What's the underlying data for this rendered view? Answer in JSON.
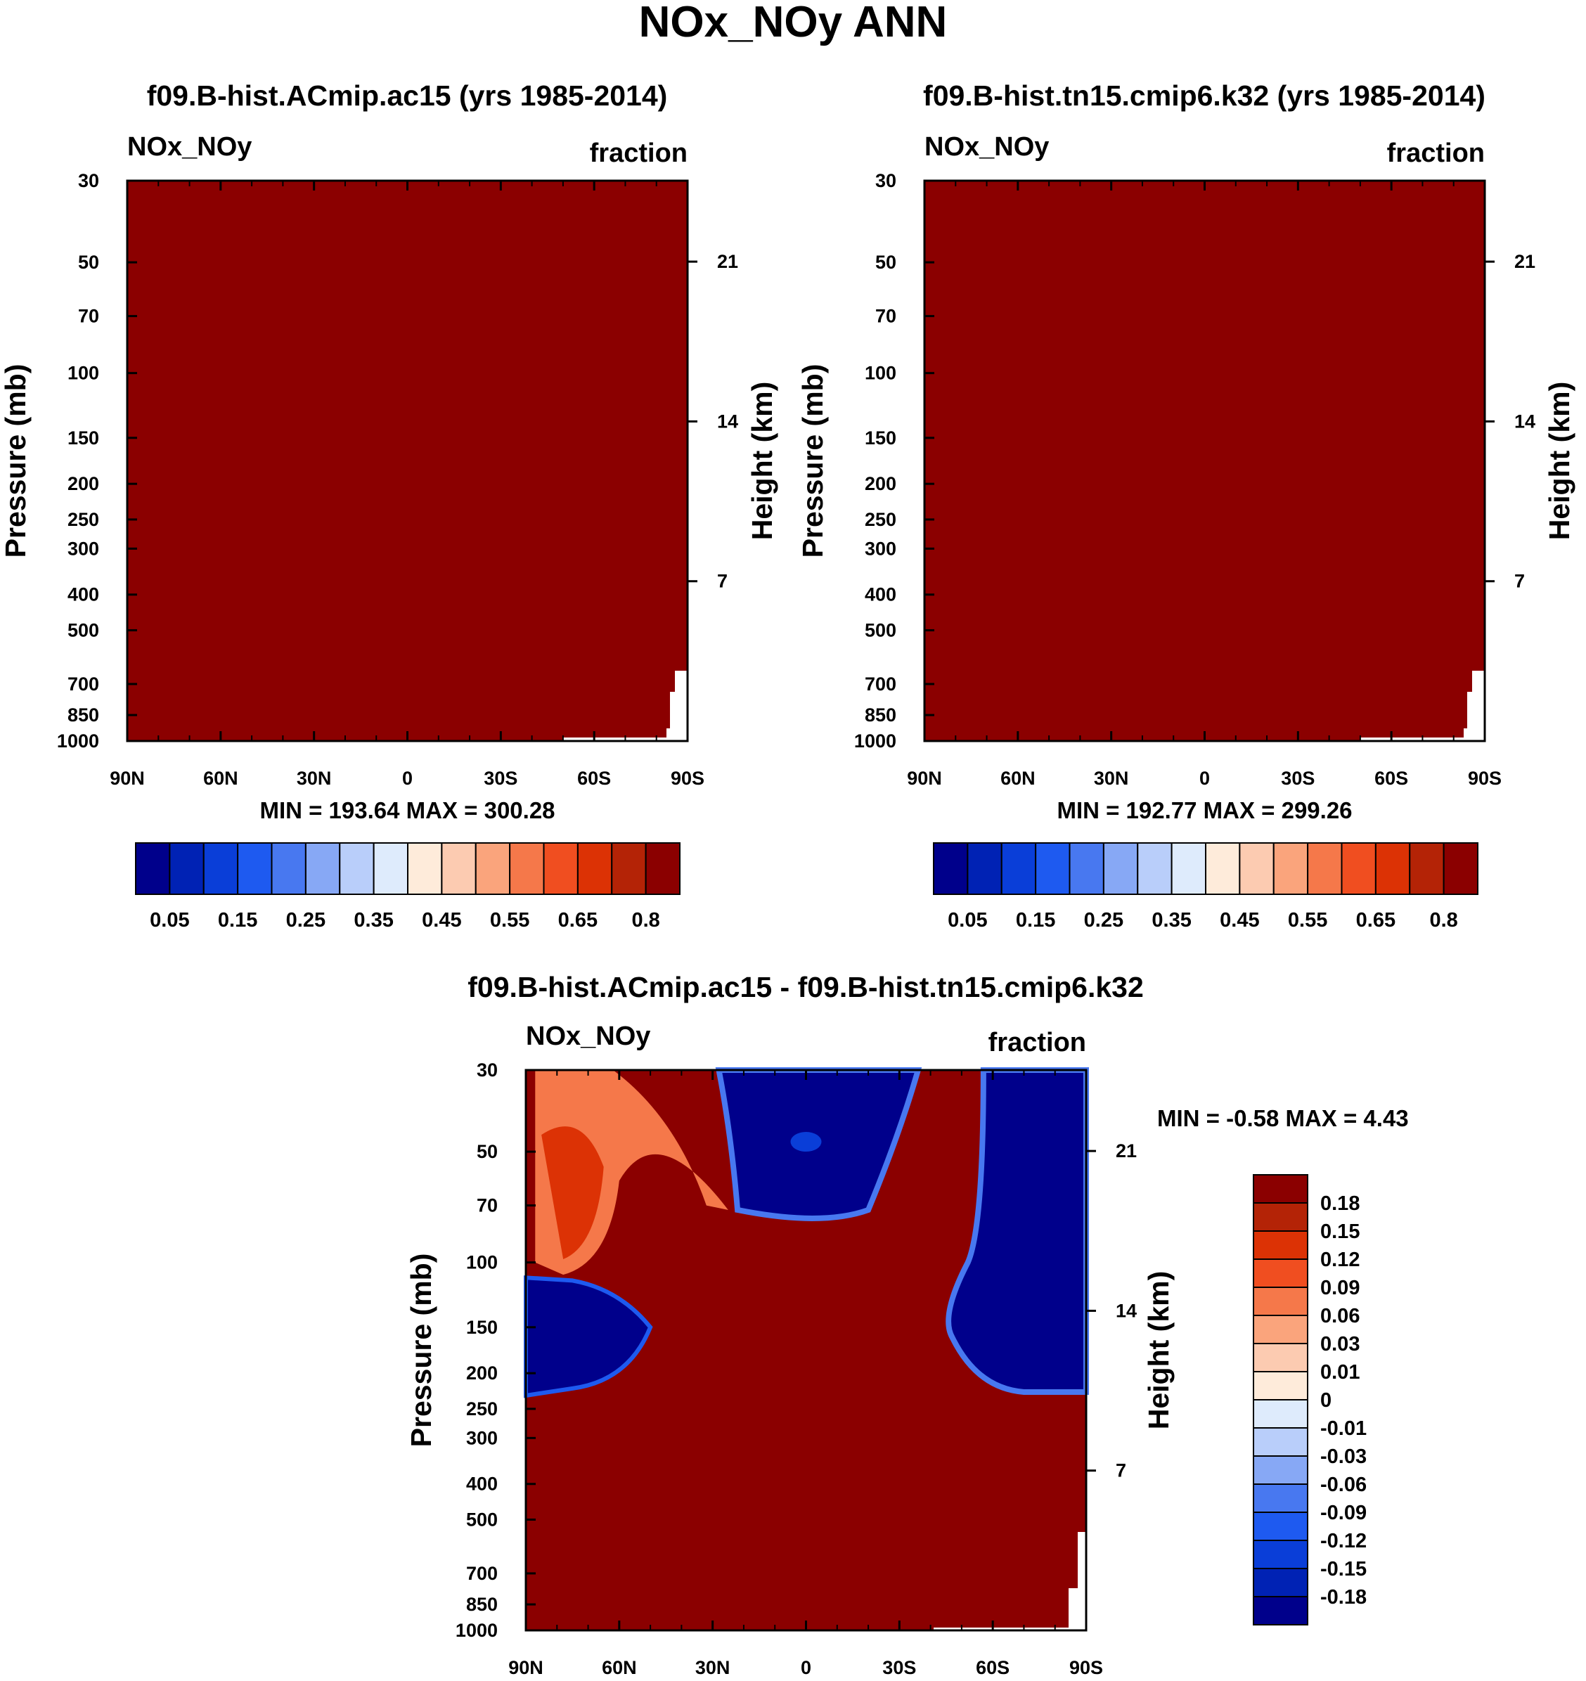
{
  "figure_title": "NOx_NOy ANN",
  "chart_data": [
    {
      "type": "heatmap",
      "title": "f09.B-hist.ACmip.ac15 (yrs 1985-2014)",
      "variable": "NOx_NOy",
      "units": "fraction",
      "ylabel": "Pressure (mb)",
      "ylabel_right": "Height (km)",
      "x_ticks": [
        "90N",
        "60N",
        "30N",
        "0",
        "30S",
        "60S",
        "90S"
      ],
      "y_ticks": [
        "30",
        "50",
        "70",
        "100",
        "150",
        "200",
        "250",
        "300",
        "400",
        "500",
        "700",
        "850",
        "1000"
      ],
      "height_ticks": [
        "21",
        "14",
        "7"
      ],
      "stats": "MIN = 193.64  MAX = 300.28",
      "field_color": "#8B0000",
      "colorbar": {
        "colors": [
          "#00008B",
          "#0022B4",
          "#0A3ED8",
          "#1E5AF0",
          "#4878F0",
          "#87A8F5",
          "#B9CEFA",
          "#DEEBFC",
          "#FEEBDA",
          "#FCCBB1",
          "#FAA47C",
          "#F5784A",
          "#F04E20",
          "#DC3205",
          "#B42306",
          "#8B0000"
        ],
        "labels": [
          "0.05",
          "0.15",
          "0.25",
          "0.35",
          "0.45",
          "0.55",
          "0.65",
          "0.8"
        ]
      }
    },
    {
      "type": "heatmap",
      "title": "f09.B-hist.tn15.cmip6.k32 (yrs 1985-2014)",
      "variable": "NOx_NOy",
      "units": "fraction",
      "ylabel": "Pressure (mb)",
      "ylabel_right": "Height (km)",
      "x_ticks": [
        "90N",
        "60N",
        "30N",
        "0",
        "30S",
        "60S",
        "90S"
      ],
      "y_ticks": [
        "30",
        "50",
        "70",
        "100",
        "150",
        "200",
        "250",
        "300",
        "400",
        "500",
        "700",
        "850",
        "1000"
      ],
      "height_ticks": [
        "21",
        "14",
        "7"
      ],
      "stats": "MIN = 192.77  MAX = 299.26",
      "field_color": "#8B0000",
      "colorbar": {
        "colors": [
          "#00008B",
          "#0022B4",
          "#0A3ED8",
          "#1E5AF0",
          "#4878F0",
          "#87A8F5",
          "#B9CEFA",
          "#DEEBFC",
          "#FEEBDA",
          "#FCCBB1",
          "#FAA47C",
          "#F5784A",
          "#F04E20",
          "#DC3205",
          "#B42306",
          "#8B0000"
        ],
        "labels": [
          "0.05",
          "0.15",
          "0.25",
          "0.35",
          "0.45",
          "0.55",
          "0.65",
          "0.8"
        ]
      }
    },
    {
      "type": "heatmap",
      "title": "f09.B-hist.ACmip.ac15 - f09.B-hist.tn15.cmip6.k32",
      "variable": "NOx_NOy",
      "units": "fraction",
      "ylabel": "Pressure (mb)",
      "ylabel_right": "Height (km)",
      "x_ticks": [
        "90N",
        "60N",
        "30N",
        "0",
        "30S",
        "60S",
        "90S"
      ],
      "y_ticks": [
        "30",
        "50",
        "70",
        "100",
        "150",
        "200",
        "250",
        "300",
        "400",
        "500",
        "700",
        "850",
        "1000"
      ],
      "height_ticks": [
        "21",
        "14",
        "7"
      ],
      "stats": "MIN =  -0.58  MAX =   4.43",
      "field_color": "#8B0000",
      "colorbar": {
        "colors": [
          "#8B0000",
          "#B42306",
          "#DC3205",
          "#F04E20",
          "#F5784A",
          "#FAA47C",
          "#FCCBB1",
          "#FEEBDA",
          "#DEEBFC",
          "#B9CEFA",
          "#87A8F5",
          "#4878F0",
          "#1E5AF0",
          "#0A3ED8",
          "#0022B4",
          "#00008B"
        ],
        "labels": [
          "0.18",
          "0.15",
          "0.12",
          "0.09",
          "0.06",
          "0.03",
          "0.01",
          "0",
          "-0.01",
          "-0.03",
          "-0.06",
          "-0.09",
          "-0.12",
          "-0.15",
          "-0.18"
        ]
      }
    }
  ]
}
